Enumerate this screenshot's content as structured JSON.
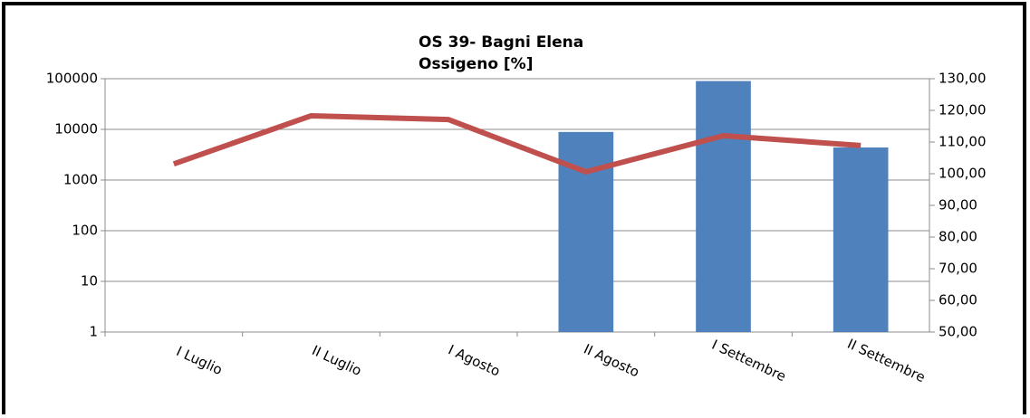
{
  "chart_data": {
    "type": "bar_line",
    "title": "OS 39- Bagni Elena",
    "subtitle": "Ossigeno [%]",
    "categories": [
      "I Luglio",
      "II Luglio",
      "I Agosto",
      "II Agosto",
      "I Settembre",
      "II Settembre"
    ],
    "series": [
      {
        "type": "bar",
        "color": "#4f81bd",
        "values": [
          null,
          null,
          null,
          8900,
          90000,
          4400
        ]
      },
      {
        "type": "line",
        "axis": "y2",
        "color": "#c0504d",
        "values": [
          103.1,
          118.3,
          117.1,
          100.6,
          112.0,
          108.9
        ]
      }
    ],
    "yscale": "log",
    "ylim": [
      1,
      100000
    ],
    "yticks": [
      1,
      10,
      100,
      1000,
      10000,
      100000
    ],
    "y2lim": [
      50,
      130
    ],
    "y2ticks": [
      {
        "value": 50,
        "label": "50,00"
      },
      {
        "value": 60,
        "label": "60,00"
      },
      {
        "value": 70,
        "label": "70,00"
      },
      {
        "value": 80,
        "label": "80,00"
      },
      {
        "value": 90,
        "label": "90,00"
      },
      {
        "value": 100,
        "label": "100,00"
      },
      {
        "value": 110,
        "label": "110,00"
      },
      {
        "value": 120,
        "label": "120,00"
      },
      {
        "value": 130,
        "label": "130,00"
      }
    ],
    "grid": true
  }
}
